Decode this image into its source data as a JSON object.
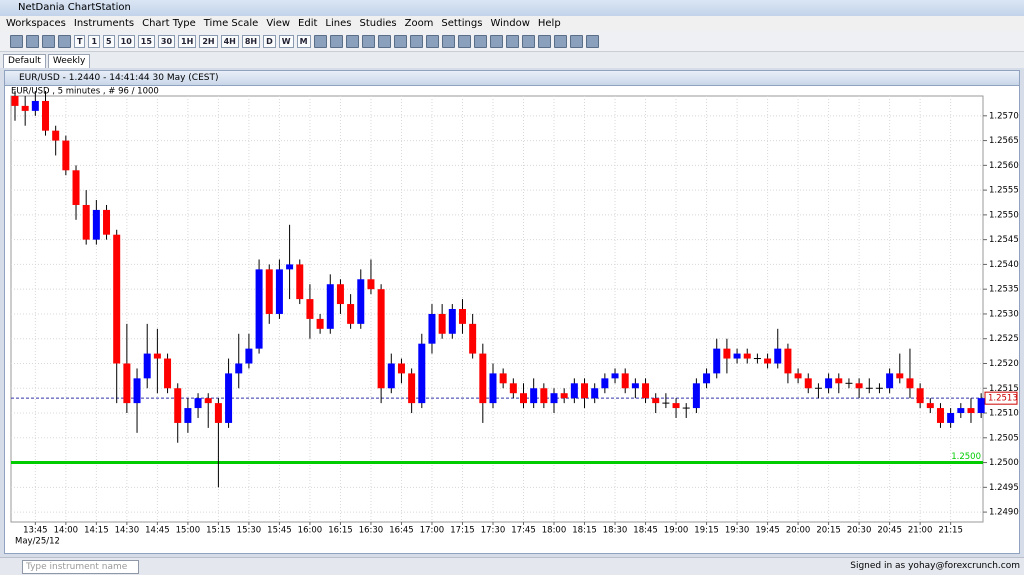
{
  "window": {
    "title": "NetDania ChartStation"
  },
  "menu": [
    "Workspaces",
    "Instruments",
    "Chart Type",
    "Time Scale",
    "View",
    "Edit",
    "Lines",
    "Studies",
    "Zoom",
    "Settings",
    "Window",
    "Help"
  ],
  "toolbar": [
    "T",
    "1",
    "5",
    "10",
    "15",
    "30",
    "1H",
    "2H",
    "4H",
    "8H",
    "D",
    "W",
    "M"
  ],
  "tabs": [
    "Default",
    "Weekly"
  ],
  "chart_window": {
    "title": "EUR/USD - 1.2440 - 14:41:44  30 May (CEST)",
    "info": "EUR/USD , 5 minutes , # 96 / 1000"
  },
  "status": {
    "input_placeholder": "Type instrument name",
    "signed_in": "Signed in as yohay@forexcrunch.com"
  },
  "chart_data": {
    "type": "candlestick",
    "x_date_label": "May/25/12",
    "categories": [
      null,
      null,
      "13:45",
      null,
      null,
      "14:00",
      null,
      null,
      "14:15",
      null,
      null,
      "14:30",
      null,
      null,
      "14:45",
      null,
      null,
      "15:00",
      null,
      null,
      "15:15",
      null,
      null,
      "15:30",
      null,
      null,
      "15:45",
      null,
      null,
      "16:00",
      null,
      null,
      "16:15",
      null,
      null,
      "16:30",
      null,
      null,
      "16:45",
      null,
      null,
      "17:00",
      null,
      null,
      "17:15",
      null,
      null,
      "17:30",
      null,
      null,
      "17:45",
      null,
      null,
      "18:00",
      null,
      null,
      "18:15",
      null,
      null,
      "18:30",
      null,
      null,
      "18:45",
      null,
      null,
      "19:00",
      null,
      null,
      "19:15",
      null,
      null,
      "19:30",
      null,
      null,
      "19:45",
      null,
      null,
      "20:00",
      null,
      null,
      "20:15",
      null,
      null,
      "20:30",
      null,
      null,
      "20:45",
      null,
      null,
      "21:00",
      null,
      null,
      "21:15",
      null,
      null,
      null
    ],
    "open": [
      1.2574,
      1.2572,
      1.2571,
      1.2573,
      1.2567,
      1.2565,
      1.2559,
      1.2552,
      1.2545,
      1.2551,
      1.2546,
      1.252,
      1.2512,
      1.2517,
      1.2522,
      1.2521,
      1.2515,
      1.2508,
      1.2511,
      1.2513,
      1.2512,
      1.2508,
      1.2518,
      1.252,
      1.2523,
      1.2539,
      1.253,
      1.2539,
      1.254,
      1.2533,
      1.2529,
      1.2527,
      1.2536,
      1.2532,
      1.2528,
      1.2537,
      1.2535,
      1.2515,
      1.252,
      1.2518,
      1.2512,
      1.2524,
      1.253,
      1.2526,
      1.2531,
      1.2528,
      1.2522,
      1.2512,
      1.2518,
      1.2516,
      1.2514,
      1.2512,
      1.2515,
      1.2512,
      1.2514,
      1.2513,
      1.2516,
      1.2513,
      1.2515,
      1.2517,
      1.2518,
      1.2515,
      1.2516,
      1.2513,
      1.2512,
      1.2512,
      1.2511,
      1.2511,
      1.2516,
      1.2518,
      1.2523,
      1.2521,
      1.2522,
      1.2521,
      1.2521,
      1.252,
      1.2523,
      1.2518,
      1.2517,
      1.2515,
      1.2515,
      1.2517,
      1.2516,
      1.2516,
      1.2515,
      1.2515,
      1.2515,
      1.2518,
      1.2517,
      1.2515,
      1.2512,
      1.2511,
      1.2508,
      1.251,
      1.2511,
      1.251
    ],
    "high": [
      1.2575,
      1.2574,
      1.2575,
      1.2575,
      1.2568,
      1.2566,
      1.256,
      1.2555,
      1.2553,
      1.2552,
      1.2547,
      1.2528,
      1.2519,
      1.2528,
      1.2527,
      1.2522,
      1.2516,
      1.2513,
      1.2514,
      1.2514,
      1.2513,
      1.2521,
      1.2526,
      1.2526,
      1.2541,
      1.254,
      1.2541,
      1.2548,
      1.2541,
      1.2536,
      1.253,
      1.2538,
      1.2537,
      1.2534,
      1.2539,
      1.2541,
      1.2536,
      1.2522,
      1.2521,
      1.2519,
      1.2526,
      1.2532,
      1.2532,
      1.2532,
      1.2533,
      1.253,
      1.2524,
      1.252,
      1.2519,
      1.2517,
      1.2516,
      1.2517,
      1.2516,
      1.2515,
      1.2515,
      1.2517,
      1.2517,
      1.2516,
      1.2518,
      1.2519,
      1.2519,
      1.2517,
      1.2517,
      1.2514,
      1.2514,
      1.2513,
      1.2512,
      1.2517,
      1.2519,
      1.2525,
      1.2525,
      1.2523,
      1.2523,
      1.2522,
      1.2522,
      1.2527,
      1.2524,
      1.2519,
      1.2518,
      1.2516,
      1.2518,
      1.2518,
      1.2517,
      1.2517,
      1.2517,
      1.2516,
      1.2519,
      1.2522,
      1.2523,
      1.2516,
      1.2513,
      1.2512,
      1.2511,
      1.2512,
      1.2513,
      1.2514
    ],
    "low": [
      1.2569,
      1.2568,
      1.257,
      1.2566,
      1.2562,
      1.2558,
      1.2549,
      1.2544,
      1.2544,
      1.2545,
      1.2512,
      1.251,
      1.2506,
      1.2515,
      1.2514,
      1.2514,
      1.2504,
      1.2506,
      1.2509,
      1.2507,
      1.2495,
      1.2507,
      1.2515,
      1.2519,
      1.2522,
      1.2528,
      1.2529,
      1.2533,
      1.2532,
      1.2525,
      1.2526,
      1.2526,
      1.253,
      1.2527,
      1.2527,
      1.2534,
      1.2512,
      1.2514,
      1.2516,
      1.251,
      1.2511,
      1.2522,
      1.2525,
      1.2525,
      1.2526,
      1.2521,
      1.2508,
      1.2511,
      1.2515,
      1.2513,
      1.2511,
      1.2511,
      1.2511,
      1.251,
      1.2512,
      1.2512,
      1.2511,
      1.2512,
      1.2514,
      1.2516,
      1.2514,
      1.2513,
      1.2512,
      1.251,
      1.2511,
      1.2509,
      1.2509,
      1.251,
      1.2515,
      1.2517,
      1.2518,
      1.252,
      1.252,
      1.252,
      1.2519,
      1.2519,
      1.2516,
      1.2516,
      1.2514,
      1.2513,
      1.2514,
      1.2514,
      1.2515,
      1.2513,
      1.2514,
      1.2514,
      1.2514,
      1.2516,
      1.2513,
      1.2511,
      1.251,
      1.2507,
      1.2507,
      1.2509,
      1.2508,
      1.2509
    ],
    "close": [
      1.2572,
      1.2571,
      1.2573,
      1.2567,
      1.2565,
      1.2559,
      1.2552,
      1.2545,
      1.2551,
      1.2546,
      1.252,
      1.2512,
      1.2517,
      1.2522,
      1.2521,
      1.2515,
      1.2508,
      1.2511,
      1.2513,
      1.2512,
      1.2508,
      1.2518,
      1.252,
      1.2523,
      1.2539,
      1.253,
      1.2539,
      1.254,
      1.2533,
      1.2529,
      1.2527,
      1.2536,
      1.2532,
      1.2528,
      1.2537,
      1.2535,
      1.2515,
      1.252,
      1.2518,
      1.2512,
      1.2524,
      1.253,
      1.2526,
      1.2531,
      1.2528,
      1.2522,
      1.2512,
      1.2518,
      1.2516,
      1.2514,
      1.2512,
      1.2515,
      1.2512,
      1.2514,
      1.2513,
      1.2516,
      1.2513,
      1.2515,
      1.2517,
      1.2518,
      1.2515,
      1.2516,
      1.2513,
      1.2512,
      1.2512,
      1.2511,
      1.2511,
      1.2516,
      1.2518,
      1.2523,
      1.2521,
      1.2522,
      1.2521,
      1.2521,
      1.252,
      1.2523,
      1.2518,
      1.2517,
      1.2515,
      1.2515,
      1.2517,
      1.2516,
      1.2516,
      1.2515,
      1.2515,
      1.2515,
      1.2518,
      1.2517,
      1.2515,
      1.2512,
      1.2511,
      1.2508,
      1.251,
      1.2511,
      1.251,
      1.2513
    ],
    "up_color": "#0000ff",
    "down_color": "#ff0000",
    "ylim": [
      1.2488,
      1.2574
    ],
    "yticks": [
      {
        "value": 1.249,
        "label": "1.2490"
      },
      {
        "value": 1.2495,
        "label": "1.2495"
      },
      {
        "value": 1.25,
        "label": "1.2500"
      },
      {
        "value": 1.2505,
        "label": "1.2505"
      },
      {
        "value": 1.251,
        "label": "1.2510"
      },
      {
        "value": 1.2515,
        "label": "1.2515"
      },
      {
        "value": 1.252,
        "label": "1.2520"
      },
      {
        "value": 1.2525,
        "label": "1.2525"
      },
      {
        "value": 1.253,
        "label": "1.2530"
      },
      {
        "value": 1.2535,
        "label": "1.2535"
      },
      {
        "value": 1.254,
        "label": "1.2540"
      },
      {
        "value": 1.2545,
        "label": "1.2545"
      },
      {
        "value": 1.255,
        "label": "1.2550"
      },
      {
        "value": 1.2555,
        "label": "1.2555"
      },
      {
        "value": 1.256,
        "label": "1.2560"
      },
      {
        "value": 1.2565,
        "label": "1.2565"
      },
      {
        "value": 1.257,
        "label": "1.2570"
      }
    ],
    "grid": true,
    "support_line": {
      "value": 1.25,
      "label": "1.2500",
      "color": "#00cc00"
    },
    "last_price": {
      "value": 1.2513,
      "label": "1.2513",
      "color": "#3333aa"
    }
  }
}
